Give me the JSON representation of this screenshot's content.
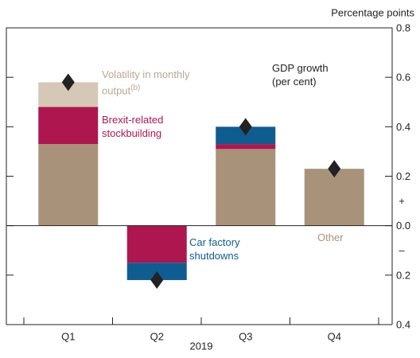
{
  "chart_data": {
    "type": "bar",
    "stacked": true,
    "y_unit_label": "Percentage points",
    "x_axis_label": "2019",
    "sign_labels": {
      "positive": "+",
      "negative": "–"
    },
    "categories": [
      "Q1",
      "Q2",
      "Q3",
      "Q4"
    ],
    "series": [
      {
        "name": "Other",
        "color": "#a8937a",
        "values": [
          0.33,
          0,
          0.31,
          0.23
        ]
      },
      {
        "name": "Brexit-related stockbuilding",
        "color": "#ae1650",
        "values": [
          0.15,
          -0.15,
          0.02,
          0
        ]
      },
      {
        "name": "Car factory shutdowns",
        "color": "#0f5c91",
        "values": [
          0,
          -0.07,
          0.07,
          0
        ]
      },
      {
        "name": "Volatility in monthly output",
        "name_superscript": "(b)",
        "color": "#d6c8b7",
        "values": [
          0.1,
          0,
          0,
          0
        ]
      }
    ],
    "markers": {
      "name": "GDP growth (per cent)",
      "color": "#222222",
      "values": [
        0.58,
        -0.22,
        0.4,
        0.23
      ]
    },
    "ylim": [
      -0.4,
      0.8
    ],
    "yticks": [
      {
        "value": -0.4,
        "label": "0.4"
      },
      {
        "value": -0.2,
        "label": "0.2"
      },
      {
        "value": 0,
        "label": "0.0"
      },
      0.2,
      0.4,
      0.6,
      0.8
    ]
  }
}
